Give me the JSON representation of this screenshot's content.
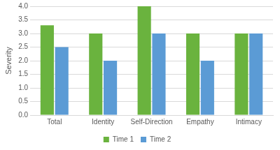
{
  "chart_data": {
    "type": "bar",
    "y_label": "Severity",
    "categories": [
      "Total",
      "Identity",
      "Self-Direction",
      "Empathy",
      "Intimacy"
    ],
    "series": [
      {
        "name": "Time 1",
        "color": "#6AB33E",
        "values": [
          3.3,
          3.0,
          4.0,
          3.0,
          3.0
        ]
      },
      {
        "name": "Time 2",
        "color": "#5B9BD5",
        "values": [
          2.5,
          2.0,
          3.0,
          2.0,
          3.0
        ]
      }
    ],
    "ylim": [
      0,
      4
    ],
    "yticks": [
      {
        "value": 0,
        "label": "0.0"
      },
      0.5,
      {
        "value": 1,
        "label": "1.0"
      },
      1.5,
      {
        "value": 2,
        "label": "2.0"
      },
      2.5,
      {
        "value": 3,
        "label": "3.0"
      },
      3.5,
      {
        "value": 4,
        "label": "4.0"
      }
    ],
    "grid": true,
    "legend": "bottom"
  }
}
